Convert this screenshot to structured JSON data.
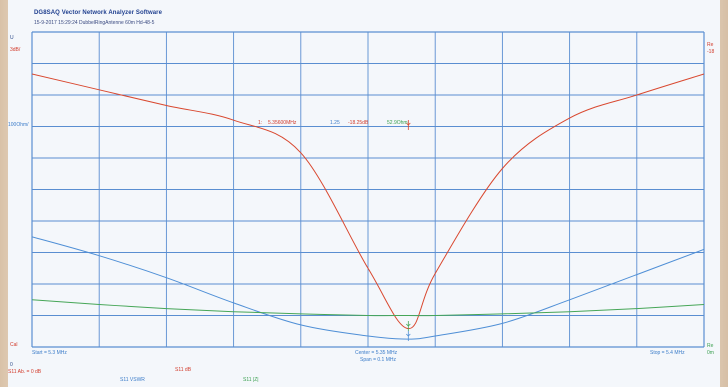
{
  "window": {
    "title": "DG8SAQ Vector Network Analyzer Software",
    "subtitle": "15-9-2017  15:29:24   DubbelRingAntenne 60m Hd-48-5"
  },
  "left_axis": {
    "top_tag": "U",
    "red_scale": "3dB/",
    "blue_scale": "100Ohm/",
    "bottom_tag": "Cal",
    "bottom_tag2": "0",
    "ref_line": "S11 Ab. = 0 dB"
  },
  "right_axis": {
    "top_tag": "Re",
    "top_value": "-18",
    "bottom_tag": "Re",
    "bottom_value": "0m"
  },
  "marker": {
    "index": "1:",
    "freq": "5.35600MHz",
    "vswr": "1.25",
    "db": "-18.25dB",
    "z": "52.9Ohm"
  },
  "footer": {
    "start": "Start = 5.3 MHz",
    "center": "Center = 5.35 MHz",
    "span": "Span = 0.1 MHz",
    "stop": "Stop = 5.4 MHz",
    "trace_red": "S11  dB",
    "trace_blue": "S11 VSWR",
    "trace_green": "S11 |Z|"
  },
  "colors": {
    "grid": "#5a8ed1",
    "red_trace": "#d9482f",
    "blue_trace": "#4f8fd6",
    "green_trace": "#46a657"
  },
  "chart_data": {
    "type": "line",
    "x_label": "",
    "xlim": [
      5.3,
      5.4
    ],
    "x": [
      5.3,
      5.31,
      5.32,
      5.33,
      5.34,
      5.35,
      5.356,
      5.36,
      5.37,
      5.38,
      5.39,
      5.4
    ],
    "series": [
      {
        "name": "S11  dB",
        "values": [
          6,
          4.5,
          3,
          1.6,
          -1.5,
          -12.5,
          -18.25,
          -13,
          -3,
          1.8,
          4,
          6
        ]
      },
      {
        "name": "S11 VSWR",
        "values": [
          4.5,
          3.9,
          3.2,
          2.4,
          1.7,
          1.35,
          1.25,
          1.35,
          1.75,
          2.5,
          3.3,
          4.1
        ]
      },
      {
        "name": "S11 |Z|",
        "values": [
          1.5,
          1.35,
          1.22,
          1.12,
          1.05,
          1.0,
          1.0,
          1.0,
          1.05,
          1.12,
          1.22,
          1.35
        ]
      }
    ],
    "grid": true,
    "legend": "bottom"
  }
}
